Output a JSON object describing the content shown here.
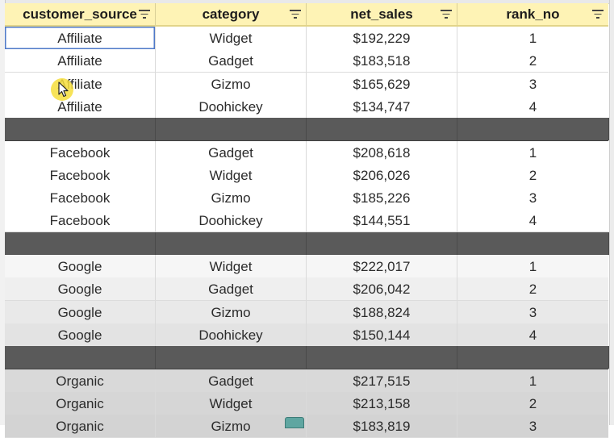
{
  "columns": [
    {
      "label": "customer_source"
    },
    {
      "label": "category"
    },
    {
      "label": "net_sales"
    },
    {
      "label": "rank_no"
    }
  ],
  "icons": {
    "filter": "filter-icon",
    "cursor": "mouse-pointer-icon"
  },
  "colors": {
    "header_bg": "#fef3b5",
    "separator_bg": "#5a5a5a",
    "selection_border": "#4e78c8",
    "cursor_highlight": "#f6de3c"
  },
  "rows": [
    {
      "type": "data",
      "cells": [
        "Affiliate",
        "Widget",
        "$192,229",
        "1"
      ],
      "bg": "#ffffff"
    },
    {
      "type": "data",
      "cells": [
        "Affiliate",
        "Gadget",
        "$183,518",
        "2"
      ],
      "bg": "#ffffff"
    },
    {
      "type": "data",
      "cells": [
        "Affiliate",
        "Gizmo",
        "$165,629",
        "3"
      ],
      "bg": "#ffffff"
    },
    {
      "type": "data",
      "cells": [
        "Affiliate",
        "Doohickey",
        "$134,747",
        "4"
      ],
      "bg": "#ffffff"
    },
    {
      "type": "separator"
    },
    {
      "type": "data",
      "cells": [
        "Facebook",
        "Gadget",
        "$208,618",
        "1"
      ],
      "bg": "#ffffff"
    },
    {
      "type": "data",
      "cells": [
        "Facebook",
        "Widget",
        "$206,026",
        "2"
      ],
      "bg": "#ffffff"
    },
    {
      "type": "data",
      "cells": [
        "Facebook",
        "Gizmo",
        "$185,226",
        "3"
      ],
      "bg": "#ffffff"
    },
    {
      "type": "data",
      "cells": [
        "Facebook",
        "Doohickey",
        "$144,551",
        "4"
      ],
      "bg": "#ffffff"
    },
    {
      "type": "separator"
    },
    {
      "type": "data",
      "cells": [
        "Google",
        "Widget",
        "$222,017",
        "1"
      ],
      "bg": "#f6f6f6"
    },
    {
      "type": "data",
      "cells": [
        "Google",
        "Gadget",
        "$206,042",
        "2"
      ],
      "bg": "#efefef"
    },
    {
      "type": "data",
      "cells": [
        "Google",
        "Gizmo",
        "$188,824",
        "3"
      ],
      "bg": "#e9e9e9"
    },
    {
      "type": "data",
      "cells": [
        "Google",
        "Doohickey",
        "$150,144",
        "4"
      ],
      "bg": "#e3e3e3"
    },
    {
      "type": "separator"
    },
    {
      "type": "data",
      "cells": [
        "Organic",
        "Gadget",
        "$217,515",
        "1"
      ],
      "bg": "#d9d9d9"
    },
    {
      "type": "data",
      "cells": [
        "Organic",
        "Widget",
        "$213,158",
        "2"
      ],
      "bg": "#d6d6d6"
    },
    {
      "type": "data",
      "cells": [
        "Organic",
        "Gizmo",
        "$183,819",
        "3"
      ],
      "bg": "#d3d3d3"
    }
  ]
}
